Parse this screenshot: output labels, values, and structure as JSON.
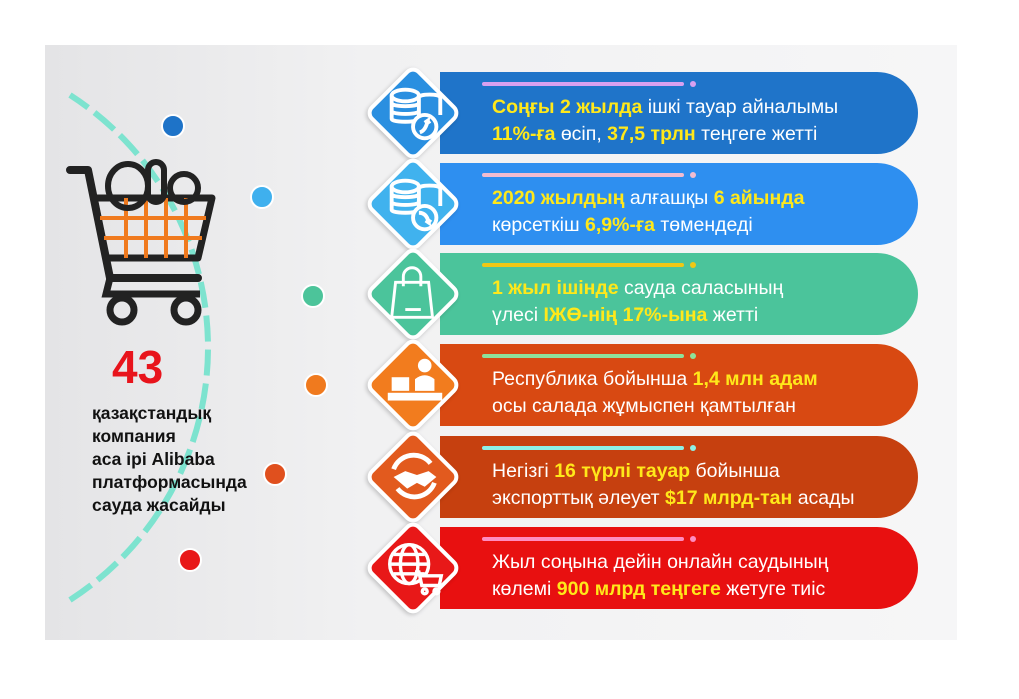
{
  "left": {
    "count": "43",
    "description": [
      "қазақстандық",
      "компания",
      "аса ірі Alibaba",
      "платформасында",
      "сауда жасайды"
    ],
    "icon": "shopping-cart-icon"
  },
  "timeline_dot_colors": [
    "#1e73c8",
    "#3fb0ee",
    "#4cc49a",
    "#f07a1e",
    "#e0501e",
    "#e81818"
  ],
  "items": [
    {
      "icon": "coins-up-icon",
      "bar": "#1f74c9",
      "diamond": "#2a8fe0",
      "rule": "#d8a0f0",
      "lines": [
        [
          {
            "t": "Соңғы 2 жылда",
            "hl": true
          },
          {
            "t": " ішкі тауар айналымы",
            "hl": false
          }
        ],
        [
          {
            "t": "11%-ға",
            "hl": true
          },
          {
            "t": " өсіп, ",
            "hl": false
          },
          {
            "t": "37,5 трлн",
            "hl": true
          },
          {
            "t": " теңгеге жетті",
            "hl": false
          }
        ]
      ]
    },
    {
      "icon": "coins-down-icon",
      "bar": "#2e8ff0",
      "diamond": "#40b2ee",
      "rule": "#f2bcd0",
      "lines": [
        [
          {
            "t": "2020 жылдың",
            "hl": true
          },
          {
            "t": " алғашқы ",
            "hl": false
          },
          {
            "t": "6 айында",
            "hl": true
          }
        ],
        [
          {
            "t": "көрсеткіш ",
            "hl": false
          },
          {
            "t": "6,9%-ға",
            "hl": true
          },
          {
            "t": " төмендеді",
            "hl": false
          }
        ]
      ]
    },
    {
      "icon": "shopping-bag-icon",
      "bar": "#4bc49b",
      "diamond": "#4bc49b",
      "rule": "#f0c814",
      "lines": [
        [
          {
            "t": "1 жыл ішінде",
            "hl": true
          },
          {
            "t": " сауда саласының",
            "hl": false
          }
        ],
        [
          {
            "t": "үлесі  ",
            "hl": false
          },
          {
            "t": "ІЖӨ-нің 17%-ына",
            "hl": true
          },
          {
            "t": " жетті",
            "hl": false
          }
        ]
      ]
    },
    {
      "icon": "worker-desk-icon",
      "bar": "#d84912",
      "diamond": "#f27c1e",
      "rule": "#8ee29a",
      "lines": [
        [
          {
            "t": "Республика бойынша ",
            "hl": false
          },
          {
            "t": "1,4 млн адам",
            "hl": true
          }
        ],
        [
          {
            "t": "осы салада жұмыспен қамтылған",
            "hl": false
          }
        ]
      ]
    },
    {
      "icon": "handshake-icon",
      "bar": "#c6400f",
      "diamond": "#e25a1e",
      "rule": "#8ef0e6",
      "lines": [
        [
          {
            "t": "Негізгі ",
            "hl": false
          },
          {
            "t": "16 түрлі тауар",
            "hl": true
          },
          {
            "t": " бойынша",
            "hl": false
          }
        ],
        [
          {
            "t": "экспорттық әлеует ",
            "hl": false
          },
          {
            "t": "$17 млрд-тан",
            "hl": true
          },
          {
            "t": " асады",
            "hl": false
          }
        ]
      ]
    },
    {
      "icon": "globe-cart-icon",
      "bar": "#e81010",
      "diamond": "#e81818",
      "rule": "#ff8cc0",
      "lines": [
        [
          {
            "t": "Жыл соңына дейін онлайн саудының",
            "hl": false
          }
        ],
        [
          {
            "t": "көлемі ",
            "hl": false
          },
          {
            "t": "900 млрд теңгеге",
            "hl": true
          },
          {
            "t": " жетуге тиіс",
            "hl": false
          }
        ]
      ]
    }
  ]
}
